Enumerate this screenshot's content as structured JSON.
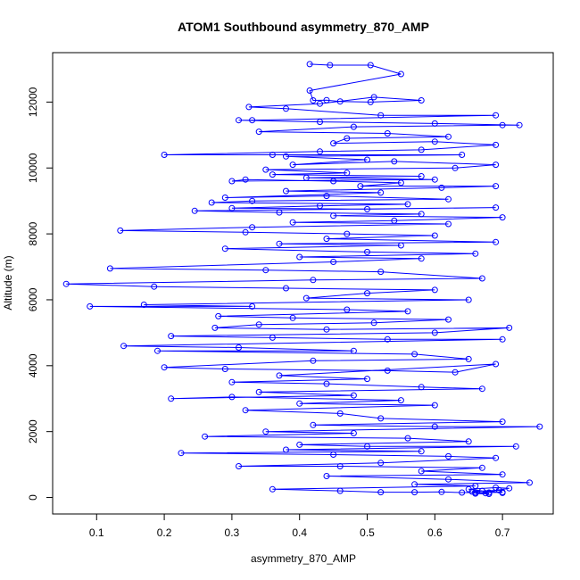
{
  "chart_data": {
    "type": "line",
    "title": "ATOM1 Southbound asymmetry_870_AMP",
    "xlabel": "asymmetry_870_AMP",
    "ylabel": "Altitude (m)",
    "xlim": [
      0.035,
      0.775
    ],
    "ylim": [
      -500,
      13500
    ],
    "xticks": [
      "0.1",
      "0.2",
      "0.3",
      "0.4",
      "0.5",
      "0.6",
      "0.7"
    ],
    "xtick_values": [
      0.1,
      0.2,
      0.3,
      0.4,
      0.5,
      0.6,
      0.7
    ],
    "yticks": [
      "0",
      "2000",
      "4000",
      "6000",
      "8000",
      "10000",
      "12000"
    ],
    "ytick_values": [
      0,
      2000,
      4000,
      6000,
      8000,
      10000,
      12000
    ],
    "grid": false,
    "legend": null,
    "series": [
      {
        "color": "#0000ff",
        "marker": "open-circle",
        "points": [
          [
            0.415,
            13150
          ],
          [
            0.445,
            13120
          ],
          [
            0.505,
            13120
          ],
          [
            0.55,
            12850
          ],
          [
            0.415,
            12350
          ],
          [
            0.42,
            12050
          ],
          [
            0.44,
            12060
          ],
          [
            0.46,
            12020
          ],
          [
            0.505,
            12000
          ],
          [
            0.58,
            12050
          ],
          [
            0.51,
            12150
          ],
          [
            0.43,
            11950
          ],
          [
            0.325,
            11850
          ],
          [
            0.38,
            11800
          ],
          [
            0.52,
            11600
          ],
          [
            0.69,
            11600
          ],
          [
            0.33,
            11450
          ],
          [
            0.31,
            11450
          ],
          [
            0.43,
            11400
          ],
          [
            0.6,
            11350
          ],
          [
            0.725,
            11300
          ],
          [
            0.7,
            11300
          ],
          [
            0.48,
            11250
          ],
          [
            0.34,
            11100
          ],
          [
            0.53,
            11050
          ],
          [
            0.62,
            10950
          ],
          [
            0.47,
            10900
          ],
          [
            0.45,
            10750
          ],
          [
            0.6,
            10800
          ],
          [
            0.69,
            10700
          ],
          [
            0.58,
            10550
          ],
          [
            0.43,
            10500
          ],
          [
            0.2,
            10400
          ],
          [
            0.36,
            10400
          ],
          [
            0.64,
            10400
          ],
          [
            0.38,
            10350
          ],
          [
            0.5,
            10250
          ],
          [
            0.39,
            10100
          ],
          [
            0.54,
            10200
          ],
          [
            0.69,
            10100
          ],
          [
            0.63,
            10000
          ],
          [
            0.35,
            9950
          ],
          [
            0.47,
            9850
          ],
          [
            0.36,
            9800
          ],
          [
            0.58,
            9750
          ],
          [
            0.41,
            9700
          ],
          [
            0.6,
            9650
          ],
          [
            0.3,
            9600
          ],
          [
            0.32,
            9650
          ],
          [
            0.45,
            9600
          ],
          [
            0.55,
            9550
          ],
          [
            0.49,
            9450
          ],
          [
            0.69,
            9450
          ],
          [
            0.61,
            9400
          ],
          [
            0.38,
            9300
          ],
          [
            0.52,
            9250
          ],
          [
            0.29,
            9100
          ],
          [
            0.44,
            9150
          ],
          [
            0.62,
            9050
          ],
          [
            0.33,
            9000
          ],
          [
            0.27,
            8950
          ],
          [
            0.56,
            8900
          ],
          [
            0.43,
            8850
          ],
          [
            0.3,
            8780
          ],
          [
            0.5,
            8750
          ],
          [
            0.69,
            8800
          ],
          [
            0.245,
            8700
          ],
          [
            0.37,
            8650
          ],
          [
            0.58,
            8600
          ],
          [
            0.45,
            8550
          ],
          [
            0.7,
            8500
          ],
          [
            0.54,
            8400
          ],
          [
            0.39,
            8350
          ],
          [
            0.62,
            8300
          ],
          [
            0.33,
            8200
          ],
          [
            0.135,
            8100
          ],
          [
            0.32,
            8050
          ],
          [
            0.47,
            8000
          ],
          [
            0.6,
            7950
          ],
          [
            0.44,
            7850
          ],
          [
            0.69,
            7750
          ],
          [
            0.37,
            7700
          ],
          [
            0.55,
            7650
          ],
          [
            0.29,
            7550
          ],
          [
            0.5,
            7450
          ],
          [
            0.66,
            7400
          ],
          [
            0.4,
            7300
          ],
          [
            0.58,
            7250
          ],
          [
            0.45,
            7150
          ],
          [
            0.12,
            6950
          ],
          [
            0.35,
            6900
          ],
          [
            0.52,
            6850
          ],
          [
            0.67,
            6650
          ],
          [
            0.42,
            6600
          ],
          [
            0.055,
            6480
          ],
          [
            0.185,
            6400
          ],
          [
            0.38,
            6350
          ],
          [
            0.6,
            6300
          ],
          [
            0.5,
            6200
          ],
          [
            0.41,
            6050
          ],
          [
            0.65,
            6000
          ],
          [
            0.17,
            5850
          ],
          [
            0.33,
            5800
          ],
          [
            0.09,
            5800
          ],
          [
            0.47,
            5700
          ],
          [
            0.56,
            5650
          ],
          [
            0.28,
            5500
          ],
          [
            0.39,
            5450
          ],
          [
            0.62,
            5400
          ],
          [
            0.51,
            5300
          ],
          [
            0.34,
            5250
          ],
          [
            0.275,
            5150
          ],
          [
            0.44,
            5100
          ],
          [
            0.71,
            5150
          ],
          [
            0.6,
            5000
          ],
          [
            0.21,
            4900
          ],
          [
            0.36,
            4850
          ],
          [
            0.53,
            4800
          ],
          [
            0.7,
            4800
          ],
          [
            0.14,
            4600
          ],
          [
            0.31,
            4550
          ],
          [
            0.48,
            4450
          ],
          [
            0.19,
            4450
          ],
          [
            0.57,
            4350
          ],
          [
            0.65,
            4200
          ],
          [
            0.42,
            4150
          ],
          [
            0.2,
            3950
          ],
          [
            0.29,
            3900
          ],
          [
            0.53,
            3850
          ],
          [
            0.63,
            3800
          ],
          [
            0.69,
            4050
          ],
          [
            0.37,
            3700
          ],
          [
            0.5,
            3600
          ],
          [
            0.3,
            3500
          ],
          [
            0.44,
            3450
          ],
          [
            0.58,
            3350
          ],
          [
            0.67,
            3300
          ],
          [
            0.34,
            3200
          ],
          [
            0.48,
            3100
          ],
          [
            0.21,
            3000
          ],
          [
            0.3,
            3050
          ],
          [
            0.55,
            2950
          ],
          [
            0.4,
            2850
          ],
          [
            0.6,
            2800
          ],
          [
            0.32,
            2650
          ],
          [
            0.46,
            2550
          ],
          [
            0.52,
            2400
          ],
          [
            0.7,
            2300
          ],
          [
            0.42,
            2200
          ],
          [
            0.6,
            2150
          ],
          [
            0.755,
            2150
          ],
          [
            0.35,
            2000
          ],
          [
            0.48,
            1950
          ],
          [
            0.26,
            1850
          ],
          [
            0.56,
            1800
          ],
          [
            0.65,
            1700
          ],
          [
            0.4,
            1600
          ],
          [
            0.5,
            1550
          ],
          [
            0.72,
            1550
          ],
          [
            0.38,
            1450
          ],
          [
            0.58,
            1400
          ],
          [
            0.225,
            1350
          ],
          [
            0.45,
            1300
          ],
          [
            0.62,
            1250
          ],
          [
            0.69,
            1200
          ],
          [
            0.52,
            1050
          ],
          [
            0.31,
            950
          ],
          [
            0.46,
            950
          ],
          [
            0.67,
            900
          ],
          [
            0.58,
            800
          ],
          [
            0.7,
            700
          ],
          [
            0.44,
            650
          ],
          [
            0.62,
            550
          ],
          [
            0.74,
            450
          ],
          [
            0.57,
            400
          ],
          [
            0.66,
            350
          ],
          [
            0.36,
            250
          ],
          [
            0.46,
            200
          ],
          [
            0.52,
            160
          ],
          [
            0.57,
            160
          ],
          [
            0.61,
            170
          ],
          [
            0.64,
            150
          ],
          [
            0.66,
            150
          ],
          [
            0.68,
            150
          ],
          [
            0.7,
            160
          ],
          [
            0.67,
            200
          ],
          [
            0.65,
            250
          ],
          [
            0.69,
            300
          ],
          [
            0.71,
            280
          ],
          [
            0.66,
            120
          ],
          [
            0.68,
            110
          ],
          [
            0.675,
            130
          ],
          [
            0.655,
            180
          ],
          [
            0.695,
            220
          ],
          [
            0.7,
            140
          ]
        ]
      }
    ]
  }
}
